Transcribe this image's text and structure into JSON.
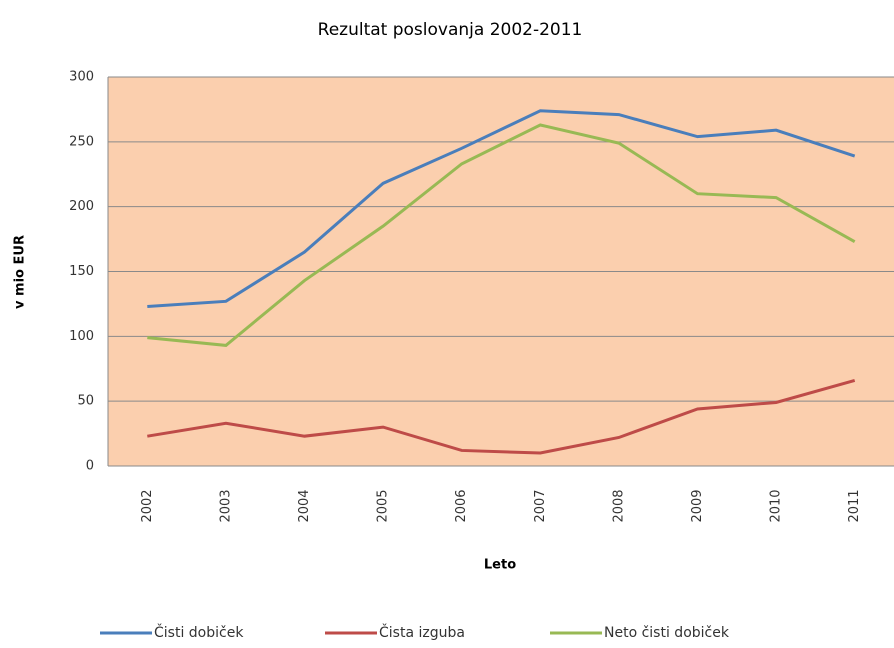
{
  "chart_data": {
    "type": "line",
    "title": "Rezultat poslovanja 2002-2011",
    "x_label": "Leto",
    "y_label": "v mio EUR",
    "categories": [
      "2002",
      "2003",
      "2004",
      "2005",
      "2006",
      "2007",
      "2008",
      "2009",
      "2010",
      "2011"
    ],
    "series": [
      {
        "name": "Čisti dobiček",
        "color": "#4a7ebb",
        "values": [
          123,
          127,
          165,
          218,
          245,
          274,
          271,
          254,
          259,
          239
        ]
      },
      {
        "name": "Čista izguba",
        "color": "#be4b48",
        "values": [
          23,
          33,
          23,
          30,
          12,
          10,
          22,
          44,
          49,
          66
        ]
      },
      {
        "name": "Neto čisti dobiček",
        "color": "#98b954",
        "values": [
          99,
          93,
          143,
          185,
          233,
          263,
          249,
          210,
          207,
          173
        ]
      }
    ],
    "ylim": [
      0,
      300
    ],
    "yticks": [
      0,
      50,
      100,
      150,
      200,
      250,
      300
    ],
    "grid": true,
    "legend": "bottom"
  }
}
